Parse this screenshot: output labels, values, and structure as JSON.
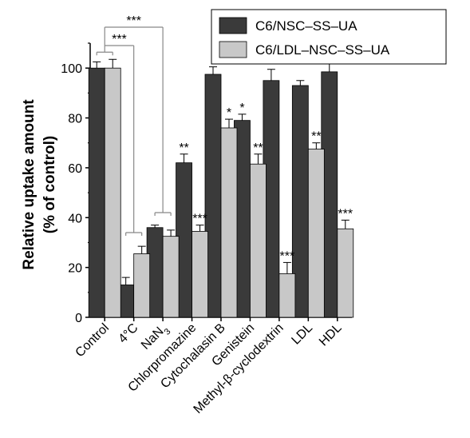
{
  "chart_data": {
    "type": "bar",
    "ylabel_line1": "Relative uptake amount",
    "ylabel_line2": "(% of control)",
    "ylim": [
      0,
      110
    ],
    "yticks": [
      "0",
      "20",
      "40",
      "60",
      "80",
      "100"
    ],
    "categories": [
      "Control",
      "4°C",
      "NaN3",
      "Chlorpromazine",
      "Cytochalasin B",
      "Genistein",
      "Methyl-β-cyclodextrin",
      "LDL",
      "HDL"
    ],
    "series": [
      {
        "name": "C6/NSC–SS–UA",
        "color": "#3a3a3a",
        "values": [
          100,
          13,
          36,
          62,
          97.5,
          79,
          95,
          93,
          98.5
        ],
        "errors": [
          2.5,
          3,
          1,
          3.5,
          3,
          2.5,
          4.5,
          2,
          3.5
        ],
        "sig": [
          "",
          "",
          "",
          "**",
          "",
          "*",
          "",
          "",
          ""
        ]
      },
      {
        "name": "C6/LDL–NSC–SS–UA",
        "color": "#c8c8c8",
        "values": [
          100,
          25.5,
          32.5,
          34.5,
          76,
          61.5,
          17.5,
          67.5,
          35.5
        ],
        "errors": [
          3.5,
          3,
          2.5,
          2.5,
          3.5,
          4,
          4.5,
          2.5,
          3.5
        ],
        "sig": [
          "",
          "",
          "",
          "***",
          "*",
          "**",
          "***",
          "**",
          "***"
        ]
      }
    ],
    "comparisons": [
      "***",
      "***"
    ],
    "grid": false,
    "legend": "top-right"
  }
}
